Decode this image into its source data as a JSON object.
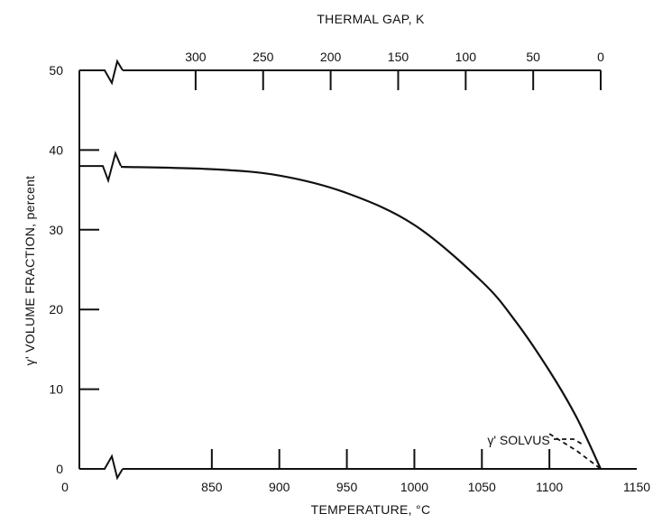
{
  "chart_data": {
    "type": "line",
    "xlabel": "TEMPERATURE, °C",
    "ylabel": "γ' VOLUME FRACTION, percent",
    "x2label": "THERMAL GAP, K",
    "xlim": [
      800,
      1150
    ],
    "ylim": [
      0,
      50
    ],
    "x_ticks": [
      850,
      900,
      950,
      1000,
      1050,
      1100,
      1150
    ],
    "x_origin_label": "0",
    "y_ticks": [
      0,
      10,
      20,
      30,
      40,
      50
    ],
    "x2_ticks": [
      300,
      250,
      200,
      150,
      100,
      50,
      0
    ],
    "solvus_temperature": 1138,
    "axis_breaks": true,
    "series": [
      {
        "style": "solid",
        "x": [
          800,
          850,
          900,
          950,
          1000,
          1050,
          1075,
          1100,
          1120,
          1138
        ],
        "y": [
          37.9,
          37.6,
          36.8,
          34.6,
          30.6,
          23.5,
          18.5,
          12.3,
          6.5,
          0
        ]
      },
      {
        "style": "dashed",
        "x": [
          1100,
          1120,
          1138
        ],
        "y": [
          4.4,
          2.3,
          0
        ]
      }
    ],
    "annotations": [
      {
        "text": "γ' SOLVUS"
      }
    ]
  }
}
